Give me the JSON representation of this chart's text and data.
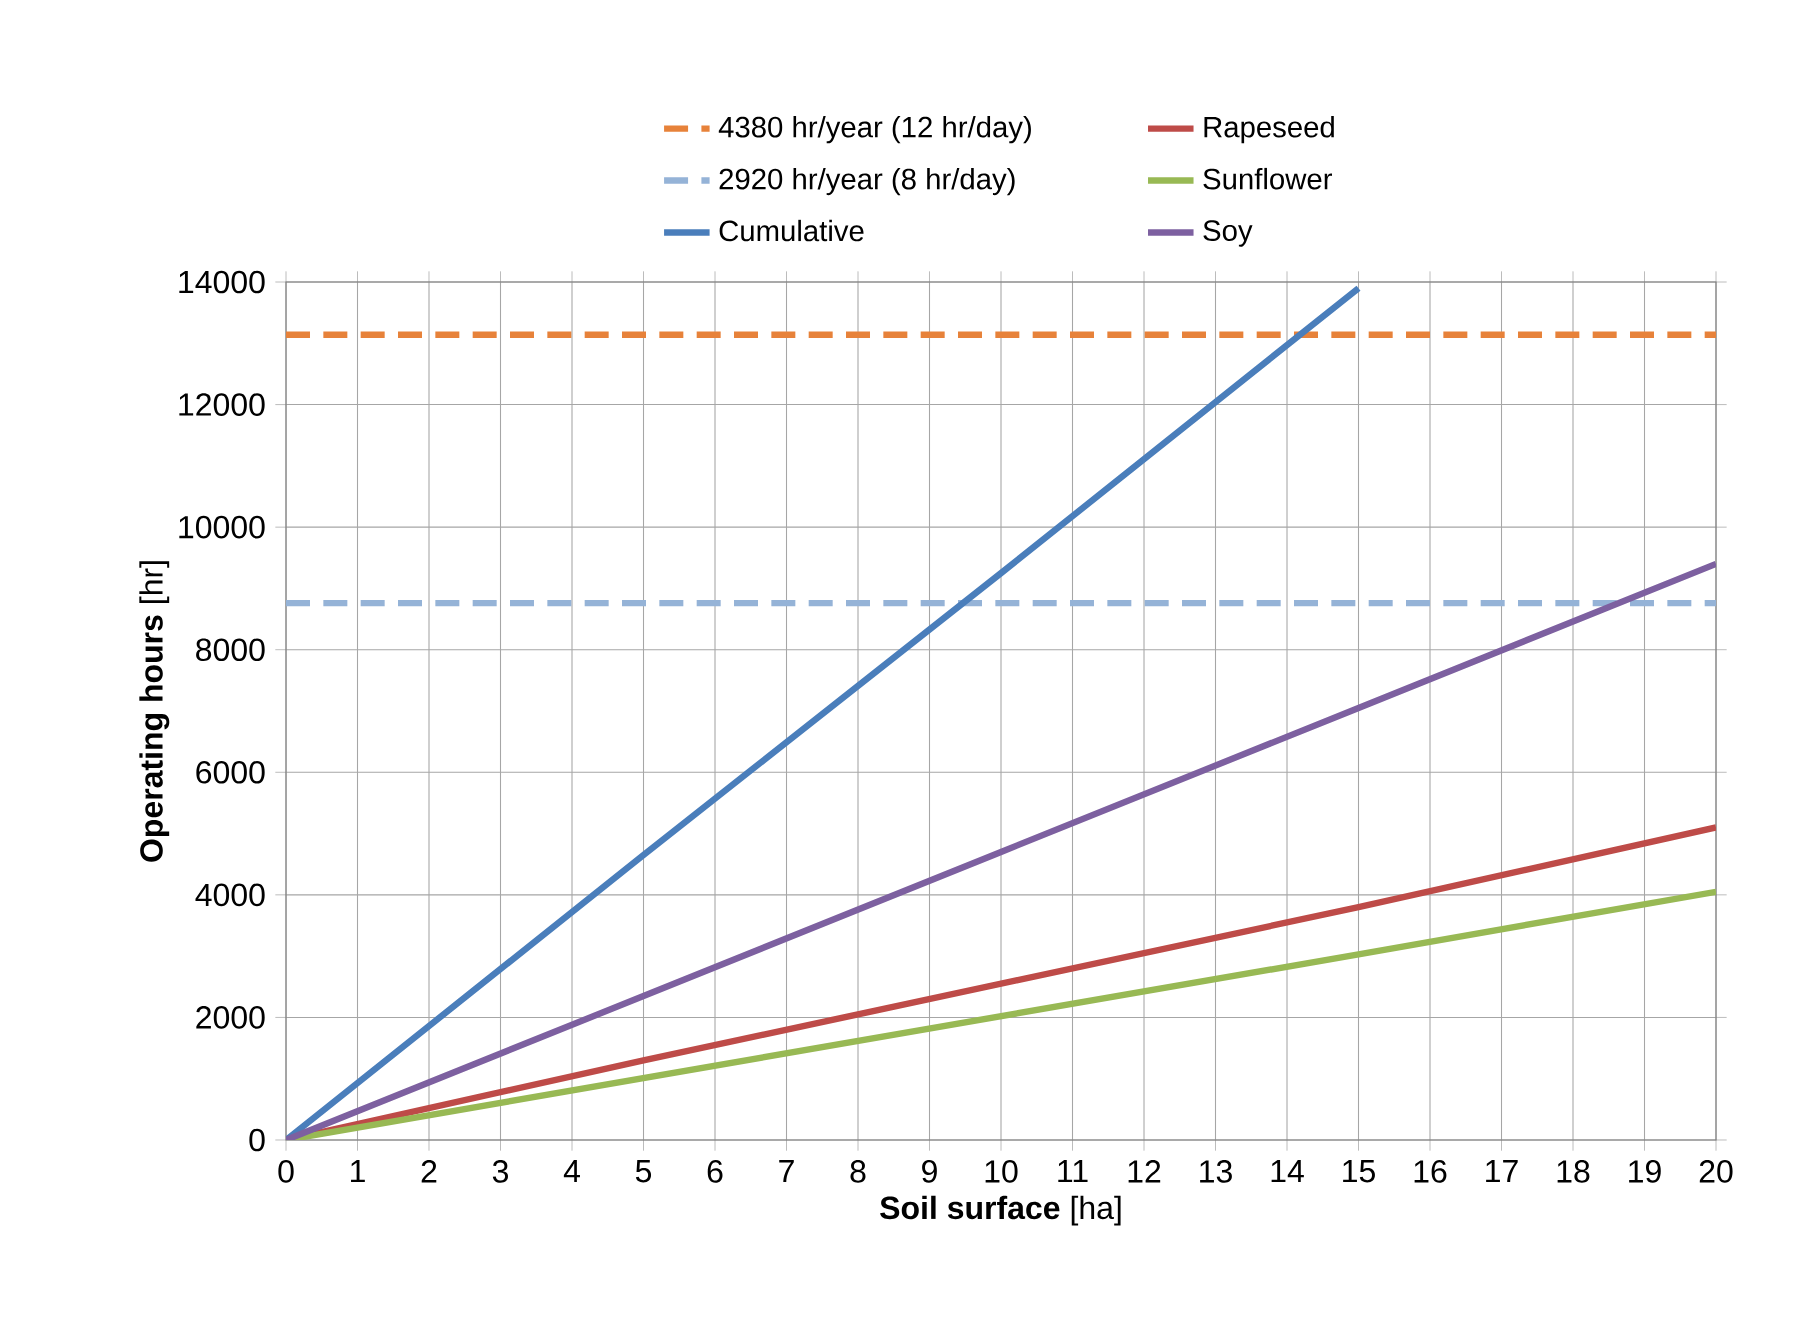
{
  "chart_data": {
    "type": "line",
    "xlabel": "**Soil surface** [ha]",
    "ylabel": "**Operating hours** [hr]",
    "xlim": [
      0,
      20
    ],
    "ylim": [
      0,
      14000
    ],
    "xticks": [
      0,
      1,
      2,
      3,
      4,
      5,
      6,
      7,
      8,
      9,
      10,
      11,
      12,
      13,
      14,
      15,
      16,
      17,
      18,
      19,
      20
    ],
    "yticks": [
      0,
      2000,
      4000,
      6000,
      8000,
      10000,
      12000,
      14000
    ],
    "grid": true,
    "legend": "top",
    "marker": "none",
    "series": [
      {
        "name": "4380 hr/year (12 hr/day)",
        "color": "#e7823a",
        "line_style": "dashed",
        "x": [
          0,
          20
        ],
        "values": [
          13140,
          13140
        ]
      },
      {
        "name": "Rapeseed",
        "color": "#be4b48",
        "x": [
          0,
          5,
          10,
          15,
          20
        ],
        "values": [
          0,
          1300,
          2550,
          3800,
          5100
        ]
      },
      {
        "name": "2920 hr/year  (8 hr/day)",
        "color": "#95b3d7",
        "line_style": "dashed",
        "x": [
          0,
          20
        ],
        "values": [
          8760,
          8760
        ]
      },
      {
        "name": "Sunflower",
        "color": "#98b954",
        "x": [
          0,
          5,
          10,
          15,
          20
        ],
        "values": [
          0,
          1010,
          2020,
          3030,
          4050
        ]
      },
      {
        "name": "Cumulative",
        "color": "#4a7ebb",
        "x": [
          0,
          5,
          10,
          15
        ],
        "values": [
          0,
          4650,
          9250,
          13900
        ]
      },
      {
        "name": "Soy",
        "color": "#7d60a0",
        "x": [
          0,
          5,
          10,
          15,
          20
        ],
        "values": [
          0,
          2350,
          4700,
          7050,
          9400
        ]
      }
    ]
  }
}
